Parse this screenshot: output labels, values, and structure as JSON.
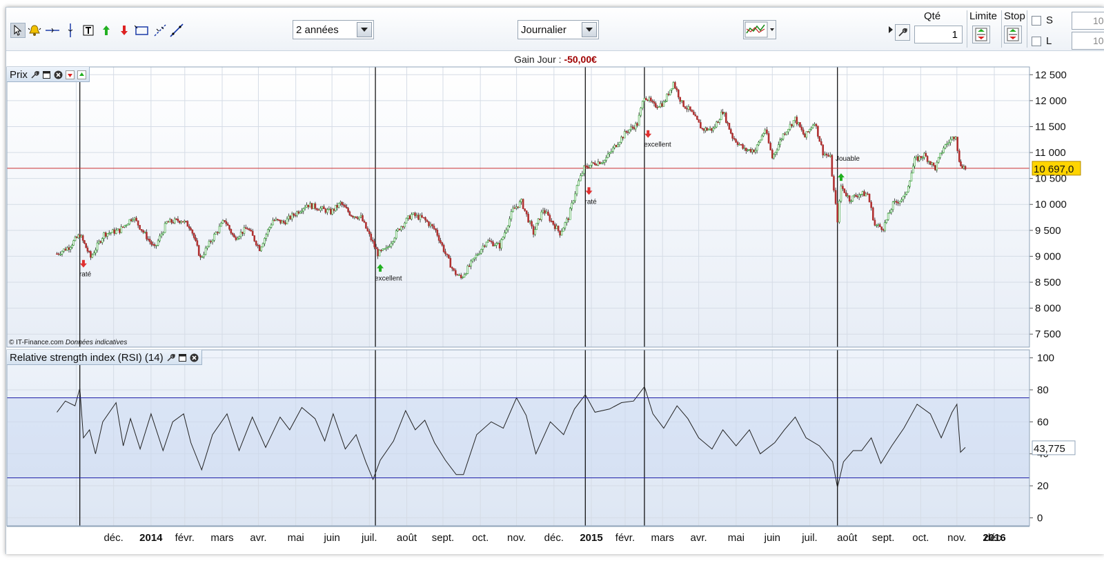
{
  "toolbar": {
    "tools": [
      "pointer-tool",
      "alert-tool",
      "horizontal-line-tool",
      "vertical-line-tool",
      "text-tool",
      "buy-signal-tool",
      "sell-signal-tool",
      "rectangle-tool",
      "trend-line-tool",
      "segment-tool"
    ],
    "period_value": "2 années",
    "interval_value": "Journalier"
  },
  "order_panel": {
    "qty_label": "Qté",
    "qty_value": "1",
    "limit_label": "Limite",
    "stop_label": "Stop",
    "s_label": "S",
    "l_label": "L",
    "s_value": "10",
    "l_value": "10"
  },
  "gain": {
    "label": "Gain Jour :",
    "value": "-50,00€"
  },
  "price_panel": {
    "title": "Prix",
    "current_price_label": "10 697,0",
    "current_price": 10697,
    "copyright": "© IT-Finance.com",
    "disclaimer": "Données indicatives"
  },
  "rsi_panel": {
    "title": "Relative strength index (RSI) (14)",
    "current_value_label": "43,775",
    "current_value": 43.775
  },
  "annotations": [
    {
      "text": "raté",
      "direction": "down",
      "color": "#e03030"
    },
    {
      "text": "excellent",
      "direction": "up",
      "color": "#20b020"
    },
    {
      "text": "raté",
      "direction": "down",
      "color": "#e03030"
    },
    {
      "text": "excellent",
      "direction": "down",
      "color": "#e03030"
    },
    {
      "text": "Jouable",
      "direction": "up",
      "color": "#20b020"
    }
  ],
  "colors": {
    "up_candle": "#2aa02a",
    "down_candle": "#b03030",
    "price_line": "#cc3030",
    "rsi_band": "#1f1fa8",
    "grid": "#d5dce6"
  },
  "chart_data": [
    {
      "type": "line",
      "title": "Prix",
      "xlabel": "",
      "ylabel": "",
      "x_tick_labels": [
        "déc.",
        "2014",
        "févr.",
        "mars",
        "avr.",
        "mai",
        "juin",
        "juil.",
        "août",
        "sept.",
        "oct.",
        "nov.",
        "déc.",
        "2015",
        "févr.",
        "mars",
        "avr.",
        "mai",
        "juin",
        "juil.",
        "août",
        "sept.",
        "oct.",
        "nov.",
        "déc.",
        "2016"
      ],
      "bold_ticks": [
        "2014",
        "2015",
        "2016"
      ],
      "y_tick_labels": [
        "12 500",
        "12 000",
        "11 500",
        "11 000",
        "10 500",
        "10 000",
        "9 500",
        "9 000",
        "8 500",
        "8 000",
        "7 500"
      ],
      "ylim": [
        7250,
        12650
      ],
      "reference_line": 10697,
      "series": [
        {
          "values": [
            [
              "2013-11-15",
              9050
            ],
            [
              "2013-11-25",
              9180
            ],
            [
              "2013-12-04",
              9420
            ],
            [
              "2013-12-13",
              8980
            ],
            [
              "2013-12-24",
              9430
            ],
            [
              "2014-01-06",
              9500
            ],
            [
              "2014-01-17",
              9760
            ],
            [
              "2014-01-27",
              9420
            ],
            [
              "2014-02-04",
              9150
            ],
            [
              "2014-02-14",
              9650
            ],
            [
              "2014-02-26",
              9700
            ],
            [
              "2014-03-06",
              9560
            ],
            [
              "2014-03-14",
              8960
            ],
            [
              "2014-03-24",
              9350
            ],
            [
              "2014-04-03",
              9700
            ],
            [
              "2014-04-11",
              9350
            ],
            [
              "2014-04-22",
              9550
            ],
            [
              "2014-05-02",
              9150
            ],
            [
              "2014-05-13",
              9700
            ],
            [
              "2014-05-22",
              9650
            ],
            [
              "2014-06-02",
              9850
            ],
            [
              "2014-06-10",
              10000
            ],
            [
              "2014-06-20",
              9930
            ],
            [
              "2014-06-30",
              9850
            ],
            [
              "2014-07-08",
              10020
            ],
            [
              "2014-07-17",
              9800
            ],
            [
              "2014-07-25",
              9750
            ],
            [
              "2014-08-01",
              9400
            ],
            [
              "2014-08-08",
              9050
            ],
            [
              "2014-08-15",
              9130
            ],
            [
              "2014-08-26",
              9550
            ],
            [
              "2014-09-05",
              9800
            ],
            [
              "2014-09-15",
              9720
            ],
            [
              "2014-09-25",
              9500
            ],
            [
              "2014-10-03",
              9050
            ],
            [
              "2014-10-10",
              8700
            ],
            [
              "2014-10-16",
              8580
            ],
            [
              "2014-10-27",
              8950
            ],
            [
              "2014-11-06",
              9300
            ],
            [
              "2014-11-17",
              9200
            ],
            [
              "2014-11-28",
              9900
            ],
            [
              "2014-12-05",
              10050
            ],
            [
              "2014-12-15",
              9450
            ],
            [
              "2014-12-23",
              9900
            ],
            [
              "2015-01-06",
              9450
            ],
            [
              "2015-01-13",
              9750
            ],
            [
              "2015-01-20",
              10350
            ],
            [
              "2015-01-26",
              10700
            ],
            [
              "2015-02-04",
              10800
            ],
            [
              "2015-02-12",
              10850
            ],
            [
              "2015-02-23",
              11200
            ],
            [
              "2015-03-02",
              11400
            ],
            [
              "2015-03-11",
              11550
            ],
            [
              "2015-03-17",
              12100
            ],
            [
              "2015-03-25",
              11900
            ],
            [
              "2015-04-02",
              11950
            ],
            [
              "2015-04-10",
              12350
            ],
            [
              "2015-04-17",
              11950
            ],
            [
              "2015-04-24",
              11800
            ],
            [
              "2015-05-04",
              11450
            ],
            [
              "2015-05-13",
              11450
            ],
            [
              "2015-05-21",
              11800
            ],
            [
              "2015-05-29",
              11300
            ],
            [
              "2015-06-08",
              11050
            ],
            [
              "2015-06-17",
              11050
            ],
            [
              "2015-06-25",
              11450
            ],
            [
              "2015-07-01",
              10900
            ],
            [
              "2015-07-10",
              11350
            ],
            [
              "2015-07-20",
              11650
            ],
            [
              "2015-07-28",
              11300
            ],
            [
              "2015-08-05",
              11600
            ],
            [
              "2015-08-12",
              11000
            ],
            [
              "2015-08-18",
              10900
            ],
            [
              "2015-08-21",
              10250
            ],
            [
              "2015-08-24",
              9700
            ],
            [
              "2015-08-27",
              10350
            ],
            [
              "2015-09-03",
              10100
            ],
            [
              "2015-09-11",
              10200
            ],
            [
              "2015-09-18",
              10200
            ],
            [
              "2015-09-24",
              9600
            ],
            [
              "2015-10-01",
              9550
            ],
            [
              "2015-10-09",
              10000
            ],
            [
              "2015-10-19",
              10150
            ],
            [
              "2015-10-27",
              10850
            ],
            [
              "2015-11-04",
              10950
            ],
            [
              "2015-11-13",
              10700
            ],
            [
              "2015-11-20",
              11100
            ],
            [
              "2015-11-30",
              11350
            ],
            [
              "2015-12-03",
              10800
            ],
            [
              "2015-12-08",
              10697
            ]
          ]
        }
      ]
    },
    {
      "type": "line",
      "title": "Relative strength index (RSI) (14)",
      "xlabel": "",
      "ylabel": "",
      "y_tick_labels": [
        "100",
        "80",
        "60",
        "40",
        "20",
        "0"
      ],
      "ylim": [
        -5,
        105
      ],
      "bands": [
        75,
        25
      ],
      "series": [
        {
          "values": [
            [
              "2013-11-15",
              66
            ],
            [
              "2013-11-22",
              73
            ],
            [
              "2013-11-30",
              70
            ],
            [
              "2013-12-04",
              81
            ],
            [
              "2013-12-07",
              50
            ],
            [
              "2013-12-12",
              55
            ],
            [
              "2013-12-17",
              40
            ],
            [
              "2013-12-23",
              60
            ],
            [
              "2014-01-03",
              72
            ],
            [
              "2014-01-09",
              45
            ],
            [
              "2014-01-15",
              62
            ],
            [
              "2014-01-23",
              43
            ],
            [
              "2014-02-01",
              65
            ],
            [
              "2014-02-11",
              42
            ],
            [
              "2014-02-19",
              60
            ],
            [
              "2014-02-28",
              65
            ],
            [
              "2014-03-06",
              47
            ],
            [
              "2014-03-15",
              30
            ],
            [
              "2014-03-24",
              52
            ],
            [
              "2014-04-05",
              65
            ],
            [
              "2014-04-15",
              42
            ],
            [
              "2014-04-26",
              63
            ],
            [
              "2014-05-07",
              44
            ],
            [
              "2014-05-19",
              63
            ],
            [
              "2014-05-27",
              55
            ],
            [
              "2014-06-06",
              69
            ],
            [
              "2014-06-17",
              62
            ],
            [
              "2014-06-25",
              48
            ],
            [
              "2014-07-02",
              65
            ],
            [
              "2014-07-12",
              43
            ],
            [
              "2014-07-21",
              52
            ],
            [
              "2014-07-29",
              35
            ],
            [
              "2014-08-04",
              24
            ],
            [
              "2014-08-10",
              36
            ],
            [
              "2014-08-21",
              48
            ],
            [
              "2014-08-31",
              67
            ],
            [
              "2014-09-08",
              55
            ],
            [
              "2014-09-16",
              61
            ],
            [
              "2014-09-24",
              47
            ],
            [
              "2014-10-03",
              36
            ],
            [
              "2014-10-12",
              27
            ],
            [
              "2014-10-18",
              27
            ],
            [
              "2014-10-29",
              52
            ],
            [
              "2014-11-10",
              60
            ],
            [
              "2014-11-20",
              56
            ],
            [
              "2014-12-01",
              75
            ],
            [
              "2014-12-09",
              64
            ],
            [
              "2014-12-17",
              40
            ],
            [
              "2014-12-29",
              60
            ],
            [
              "2015-01-09",
              52
            ],
            [
              "2015-01-18",
              68
            ],
            [
              "2015-01-27",
              77
            ],
            [
              "2015-02-04",
              66
            ],
            [
              "2015-02-16",
              68
            ],
            [
              "2015-02-26",
              72
            ],
            [
              "2015-03-08",
              73
            ],
            [
              "2015-03-17",
              82
            ],
            [
              "2015-03-24",
              65
            ],
            [
              "2015-04-02",
              56
            ],
            [
              "2015-04-13",
              70
            ],
            [
              "2015-04-22",
              62
            ],
            [
              "2015-05-01",
              50
            ],
            [
              "2015-05-12",
              43
            ],
            [
              "2015-05-21",
              55
            ],
            [
              "2015-06-01",
              45
            ],
            [
              "2015-06-12",
              55
            ],
            [
              "2015-06-21",
              40
            ],
            [
              "2015-07-03",
              47
            ],
            [
              "2015-07-11",
              55
            ],
            [
              "2015-07-20",
              63
            ],
            [
              "2015-07-29",
              50
            ],
            [
              "2015-08-09",
              45
            ],
            [
              "2015-08-20",
              35
            ],
            [
              "2015-08-24",
              19
            ],
            [
              "2015-08-29",
              35
            ],
            [
              "2015-09-06",
              42
            ],
            [
              "2015-09-13",
              42
            ],
            [
              "2015-09-21",
              50
            ],
            [
              "2015-09-29",
              34
            ],
            [
              "2015-10-08",
              45
            ],
            [
              "2015-10-18",
              56
            ],
            [
              "2015-10-29",
              71
            ],
            [
              "2015-11-09",
              65
            ],
            [
              "2015-11-18",
              50
            ],
            [
              "2015-11-27",
              66
            ],
            [
              "2015-12-01",
              71
            ],
            [
              "2015-12-04",
              41
            ],
            [
              "2015-12-08",
              44
            ]
          ]
        }
      ]
    }
  ]
}
